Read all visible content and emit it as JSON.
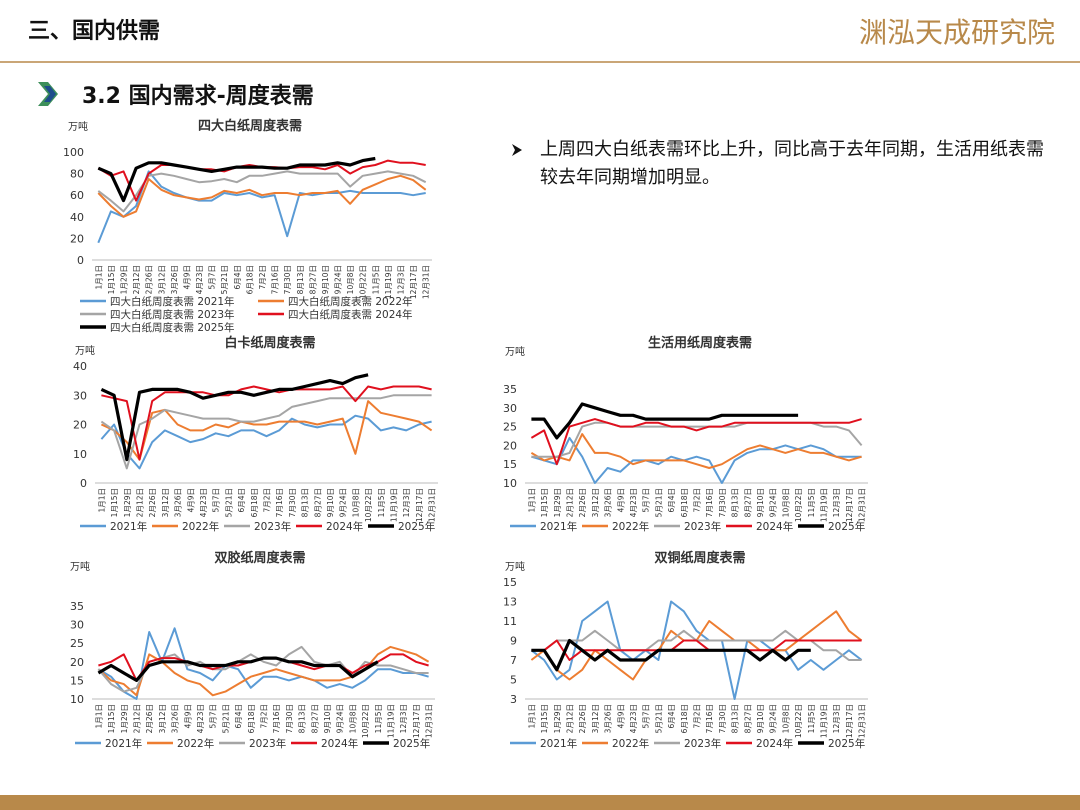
{
  "header": {
    "title": "三、国内供需",
    "logo": "渊泓天成研究院",
    "section": "3.2 国内需求-周度表需"
  },
  "bullet": "上周四大白纸表需环比上升，同比高于去年同期，生活用纸表需较去年同期增加明显。",
  "chart_data": [
    {
      "type": "line",
      "title": "四大白纸周度表需",
      "y_label": "万吨",
      "ylim": [
        0,
        100
      ],
      "yticks": [
        0,
        20,
        40,
        60,
        80,
        100
      ],
      "grid": false,
      "categories": [
        "1月1日",
        "1月15日",
        "1月29日",
        "2月12日",
        "2月26日",
        "3月12日",
        "3月26日",
        "4月9日",
        "4月23日",
        "5月7日",
        "5月21日",
        "6月4日",
        "6月18日",
        "7月2日",
        "7月16日",
        "7月30日",
        "8月13日",
        "8月27日",
        "9月10日",
        "9月24日",
        "10月8日",
        "10月22日",
        "11月5日",
        "11月19日",
        "12月3日",
        "12月17日",
        "12月31日"
      ],
      "series": [
        {
          "name": "四大白纸周度表需 2021年",
          "color": "#5b9bd5",
          "values": [
            16,
            45,
            40,
            50,
            82,
            68,
            62,
            58,
            55,
            55,
            62,
            60,
            62,
            58,
            60,
            22,
            62,
            60,
            62,
            62,
            64,
            62,
            62,
            62,
            62,
            60,
            62
          ]
        },
        {
          "name": "四大白纸周度表需 2022年",
          "color": "#ed7d31",
          "values": [
            62,
            50,
            40,
            45,
            75,
            65,
            60,
            58,
            56,
            58,
            64,
            62,
            65,
            60,
            62,
            62,
            60,
            62,
            62,
            64,
            52,
            65,
            70,
            75,
            78,
            74,
            65
          ]
        },
        {
          "name": "四大白纸周度表需 2023年",
          "color": "#a5a5a5",
          "values": [
            64,
            55,
            45,
            60,
            78,
            80,
            78,
            75,
            72,
            73,
            75,
            72,
            78,
            78,
            80,
            82,
            80,
            80,
            80,
            80,
            68,
            78,
            80,
            82,
            80,
            78,
            72
          ]
        },
        {
          "name": "四大白纸周度表需 2024年",
          "color": "#e0101e",
          "values": [
            85,
            78,
            82,
            55,
            80,
            88,
            88,
            86,
            84,
            84,
            82,
            86,
            88,
            86,
            86,
            85,
            86,
            86,
            84,
            88,
            80,
            86,
            88,
            92,
            90,
            90,
            88
          ]
        },
        {
          "name": "四大白纸周度表需 2025年",
          "color": "#000000",
          "values": [
            85,
            80,
            55,
            85,
            90,
            90,
            88,
            86,
            84,
            82,
            84,
            86,
            86,
            86,
            85,
            85,
            88,
            88,
            88,
            90,
            88,
            92,
            94,
            null,
            null,
            null,
            null
          ]
        }
      ]
    },
    {
      "type": "line",
      "title": "白卡纸周度表需",
      "y_label": "万吨",
      "ylim": [
        0,
        40
      ],
      "yticks": [
        0,
        10,
        20,
        30,
        40
      ],
      "grid": false,
      "categories": [
        "1月1日",
        "1月15日",
        "1月29日",
        "2月12日",
        "2月26日",
        "3月12日",
        "3月26日",
        "4月9日",
        "4月23日",
        "5月7日",
        "5月21日",
        "6月4日",
        "6月18日",
        "7月2日",
        "7月16日",
        "7月30日",
        "8月13日",
        "8月27日",
        "9月10日",
        "9月24日",
        "10月8日",
        "10月22日",
        "11月5日",
        "11月19日",
        "12月3日",
        "12月17日",
        "12月31日"
      ],
      "series": [
        {
          "name": "2021年",
          "color": "#5b9bd5",
          "values": [
            15,
            20,
            10,
            5,
            14,
            18,
            16,
            14,
            15,
            17,
            16,
            18,
            18,
            16,
            18,
            22,
            20,
            19,
            20,
            20,
            23,
            22,
            18,
            19,
            18,
            20,
            21
          ]
        },
        {
          "name": "2022年",
          "color": "#ed7d31",
          "values": [
            20,
            18,
            14,
            8,
            24,
            25,
            20,
            18,
            18,
            20,
            19,
            21,
            20,
            20,
            21,
            21,
            21,
            20,
            21,
            22,
            10,
            28,
            24,
            23,
            22,
            21,
            18
          ]
        },
        {
          "name": "2023年",
          "color": "#a5a5a5",
          "values": [
            21,
            18,
            5,
            20,
            22,
            25,
            24,
            23,
            22,
            22,
            22,
            21,
            21,
            22,
            23,
            26,
            27,
            28,
            29,
            29,
            29,
            29,
            29,
            30,
            30,
            30,
            30
          ]
        },
        {
          "name": "2024年",
          "color": "#e0101e",
          "values": [
            30,
            29,
            28,
            8,
            28,
            31,
            31,
            31,
            31,
            30,
            30,
            32,
            33,
            32,
            31,
            32,
            32,
            32,
            32,
            33,
            28,
            33,
            32,
            33,
            33,
            33,
            32
          ]
        },
        {
          "name": "2025年",
          "color": "#000000",
          "values": [
            32,
            30,
            8,
            31,
            32,
            32,
            32,
            31,
            29,
            30,
            31,
            31,
            30,
            31,
            32,
            32,
            33,
            34,
            35,
            34,
            36,
            37,
            null,
            null,
            null,
            null,
            null
          ]
        }
      ]
    },
    {
      "type": "line",
      "title": "生活用纸周度表需",
      "y_label": "万吨",
      "ylim": [
        10,
        35
      ],
      "yticks": [
        10,
        15,
        20,
        25,
        30,
        35
      ],
      "grid": false,
      "categories": [
        "1月1日",
        "1月15日",
        "1月29日",
        "2月12日",
        "2月26日",
        "3月12日",
        "3月26日",
        "4月9日",
        "4月23日",
        "5月7日",
        "5月21日",
        "6月4日",
        "6月18日",
        "7月2日",
        "7月16日",
        "7月30日",
        "8月13日",
        "8月27日",
        "9月10日",
        "9月24日",
        "10月8日",
        "10月22日",
        "11月5日",
        "11月19日",
        "12月3日",
        "12月17日",
        "12月31日"
      ],
      "series": [
        {
          "name": "2021年",
          "color": "#5b9bd5",
          "values": [
            17,
            16,
            15,
            22,
            17,
            10,
            14,
            13,
            16,
            16,
            15,
            17,
            16,
            17,
            16,
            10,
            16,
            18,
            19,
            19,
            20,
            19,
            20,
            19,
            17,
            17,
            17
          ]
        },
        {
          "name": "2022年",
          "color": "#ed7d31",
          "values": [
            18,
            16,
            17,
            16,
            23,
            18,
            18,
            17,
            15,
            16,
            16,
            16,
            16,
            15,
            14,
            15,
            17,
            19,
            20,
            19,
            18,
            19,
            18,
            18,
            17,
            16,
            17
          ]
        },
        {
          "name": "2023年",
          "color": "#a5a5a5",
          "values": [
            17,
            17,
            17,
            18,
            25,
            26,
            26,
            25,
            25,
            25,
            25,
            25,
            25,
            25,
            25,
            25,
            25,
            26,
            26,
            26,
            26,
            26,
            26,
            25,
            25,
            24,
            20
          ]
        },
        {
          "name": "2024年",
          "color": "#e0101e",
          "values": [
            22,
            24,
            15,
            25,
            26,
            27,
            26,
            25,
            25,
            26,
            26,
            25,
            25,
            24,
            25,
            25,
            26,
            26,
            26,
            26,
            26,
            26,
            26,
            26,
            26,
            26,
            27
          ]
        },
        {
          "name": "2025年",
          "color": "#000000",
          "values": [
            27,
            27,
            22,
            26,
            31,
            30,
            29,
            28,
            28,
            27,
            27,
            27,
            27,
            27,
            27,
            28,
            28,
            28,
            28,
            28,
            28,
            28,
            null,
            null,
            null,
            null,
            null
          ]
        }
      ]
    },
    {
      "type": "line",
      "title": "双胶纸周度表需",
      "y_label": "万吨",
      "ylim": [
        10,
        35
      ],
      "yticks": [
        10,
        15,
        20,
        25,
        30,
        35
      ],
      "grid": false,
      "categories": [
        "1月1日",
        "1月15日",
        "1月29日",
        "2月12日",
        "2月26日",
        "3月12日",
        "3月26日",
        "4月9日",
        "4月23日",
        "5月7日",
        "5月21日",
        "6月4日",
        "6月18日",
        "7月2日",
        "7月16日",
        "7月30日",
        "8月13日",
        "8月27日",
        "9月10日",
        "9月24日",
        "10月8日",
        "10月22日",
        "11月5日",
        "11月19日",
        "12月3日",
        "12月17日",
        "12月31日"
      ],
      "series": [
        {
          "name": "2021年",
          "color": "#5b9bd5",
          "values": [
            18,
            16,
            12,
            10,
            28,
            20,
            29,
            18,
            17,
            15,
            19,
            18,
            13,
            16,
            16,
            15,
            16,
            15,
            13,
            14,
            13,
            15,
            18,
            18,
            17,
            17,
            16
          ]
        },
        {
          "name": "2022年",
          "color": "#ed7d31",
          "values": [
            18,
            15,
            14,
            11,
            22,
            20,
            17,
            15,
            14,
            11,
            12,
            14,
            16,
            17,
            18,
            17,
            16,
            15,
            15,
            15,
            16,
            18,
            22,
            24,
            23,
            22,
            20
          ]
        },
        {
          "name": "2023年",
          "color": "#a5a5a5",
          "values": [
            18,
            14,
            12,
            13,
            20,
            21,
            22,
            19,
            20,
            18,
            18,
            20,
            22,
            20,
            19,
            22,
            24,
            20,
            19,
            20,
            16,
            20,
            19,
            19,
            18,
            17,
            17
          ]
        },
        {
          "name": "2024年",
          "color": "#e0101e",
          "values": [
            19,
            20,
            22,
            15,
            20,
            21,
            21,
            20,
            19,
            18,
            19,
            19,
            20,
            21,
            21,
            20,
            19,
            18,
            19,
            19,
            17,
            19,
            20,
            22,
            22,
            20,
            19
          ]
        },
        {
          "name": "2025年",
          "color": "#000000",
          "values": [
            17,
            19,
            17,
            15,
            19,
            20,
            20,
            20,
            19,
            19,
            19,
            20,
            20,
            21,
            21,
            20,
            20,
            19,
            19,
            19,
            16,
            18,
            20,
            null,
            null,
            null,
            null
          ]
        }
      ]
    },
    {
      "type": "line",
      "title": "双铜纸周度表需",
      "y_label": "万吨",
      "ylim": [
        3,
        15
      ],
      "yticks": [
        3,
        5,
        7,
        9,
        11,
        13,
        15
      ],
      "grid": false,
      "categories": [
        "1月1日",
        "1月15日",
        "1月29日",
        "2月12日",
        "2月26日",
        "3月12日",
        "3月26日",
        "4月9日",
        "4月23日",
        "5月7日",
        "5月21日",
        "6月4日",
        "6月18日",
        "7月2日",
        "7月16日",
        "7月30日",
        "8月13日",
        "8月27日",
        "9月10日",
        "9月24日",
        "10月8日",
        "10月22日",
        "11月5日",
        "11月19日",
        "12月3日",
        "12月17日",
        "12月31日"
      ],
      "series": [
        {
          "name": "2021年",
          "color": "#5b9bd5",
          "values": [
            8,
            7,
            5,
            6,
            11,
            12,
            13,
            8,
            7,
            8,
            7,
            13,
            12,
            10,
            9,
            9,
            3,
            9,
            9,
            8,
            8,
            6,
            7,
            6,
            7,
            8,
            7
          ]
        },
        {
          "name": "2022年",
          "color": "#ed7d31",
          "values": [
            7,
            8,
            6,
            5,
            6,
            8,
            7,
            6,
            5,
            7,
            8,
            10,
            9,
            9,
            11,
            10,
            9,
            9,
            8,
            8,
            8,
            9,
            10,
            11,
            12,
            10,
            9
          ]
        },
        {
          "name": "2023年",
          "color": "#a5a5a5",
          "values": [
            8,
            8,
            9,
            9,
            9,
            10,
            9,
            8,
            8,
            8,
            9,
            9,
            10,
            9,
            9,
            9,
            9,
            9,
            9,
            9,
            10,
            9,
            9,
            8,
            8,
            7,
            7
          ]
        },
        {
          "name": "2024年",
          "color": "#e0101e",
          "values": [
            8,
            8,
            9,
            7,
            8,
            8,
            8,
            8,
            8,
            8,
            8,
            8,
            9,
            9,
            8,
            8,
            8,
            8,
            8,
            8,
            9,
            9,
            9,
            9,
            9,
            9,
            9
          ]
        },
        {
          "name": "2025年",
          "color": "#000000",
          "values": [
            8,
            8,
            6,
            9,
            8,
            7,
            8,
            7,
            7,
            7,
            8,
            8,
            8,
            8,
            8,
            8,
            8,
            8,
            7,
            8,
            7,
            8,
            8,
            null,
            null,
            null,
            null
          ]
        }
      ]
    }
  ]
}
